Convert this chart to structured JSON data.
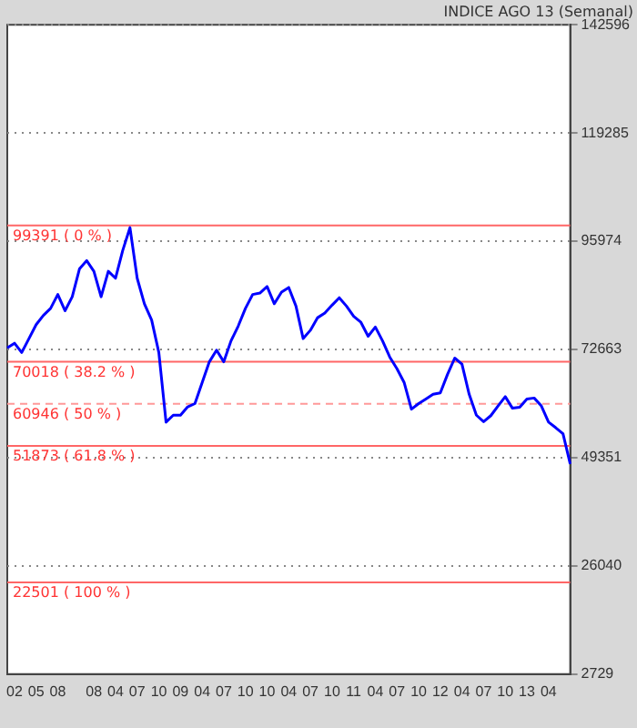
{
  "chart_data": {
    "type": "line",
    "title": "INDICE AGO 13 (Semanal)",
    "categories": [
      null,
      "02",
      null,
      null,
      "05",
      null,
      null,
      "08",
      null,
      null,
      null,
      null,
      "08",
      null,
      null,
      "04",
      null,
      null,
      "07",
      null,
      null,
      "10",
      null,
      null,
      "09",
      null,
      null,
      "04",
      null,
      null,
      "07",
      null,
      null,
      "10",
      null,
      null,
      "10",
      null,
      null,
      "04",
      null,
      null,
      "07",
      null,
      null,
      "10",
      null,
      null,
      "11",
      null,
      null,
      "04",
      null,
      null,
      "07",
      null,
      null,
      "10",
      null,
      null,
      "12",
      null,
      null,
      "04",
      null,
      null,
      "07",
      null,
      null,
      "10",
      null,
      null,
      "13",
      null,
      null,
      "04",
      null,
      null,
      null
    ],
    "series": [
      {
        "color": "#0000ff",
        "values": [
          73000,
          74000,
          72000,
          75000,
          78000,
          80000,
          81500,
          84500,
          81000,
          84000,
          90000,
          91800,
          89500,
          84000,
          89500,
          88000,
          94000,
          98900,
          88000,
          82500,
          79000,
          72000,
          57000,
          58500,
          58500,
          60300,
          61000,
          65500,
          70000,
          72500,
          70000,
          74500,
          77700,
          81500,
          84500,
          84800,
          86200,
          82500,
          85000,
          86000,
          82000,
          75000,
          76800,
          79500,
          80500,
          82200,
          83800,
          82000,
          79800,
          78500,
          75500,
          77500,
          74500,
          71000,
          68500,
          65500,
          59800,
          61000,
          62000,
          63000,
          63300,
          67300,
          70800,
          69500,
          63000,
          58500,
          57100,
          58400,
          60500,
          62500,
          60000,
          60200,
          62000,
          62200,
          60500,
          57000,
          55800,
          54500,
          48000
        ]
      }
    ],
    "ylim": [
      2729,
      142596
    ],
    "yticks": [
      2729,
      26040,
      49351,
      72663,
      95974,
      119285,
      142596
    ],
    "ref_lines": [
      {
        "axis": "y",
        "value": 99391,
        "label": "99391 ( 0 % )",
        "color": "#ff6666"
      },
      {
        "axis": "y",
        "value": 70018,
        "label": "70018 ( 38.2 % )",
        "color": "#ff6666"
      },
      {
        "axis": "y",
        "value": 60946,
        "label": "60946 ( 50 % )",
        "color": "#ff9999",
        "line_style": "dashed"
      },
      {
        "axis": "y",
        "value": 51873,
        "label": "51873 ( 61.8 % )",
        "color": "#ff6666"
      },
      {
        "axis": "y",
        "value": 22501,
        "label": "22501 ( 100 % )",
        "color": "#ff6666"
      }
    ],
    "grid": "y",
    "legend": false,
    "marker": "none",
    "line_style": "solid"
  }
}
